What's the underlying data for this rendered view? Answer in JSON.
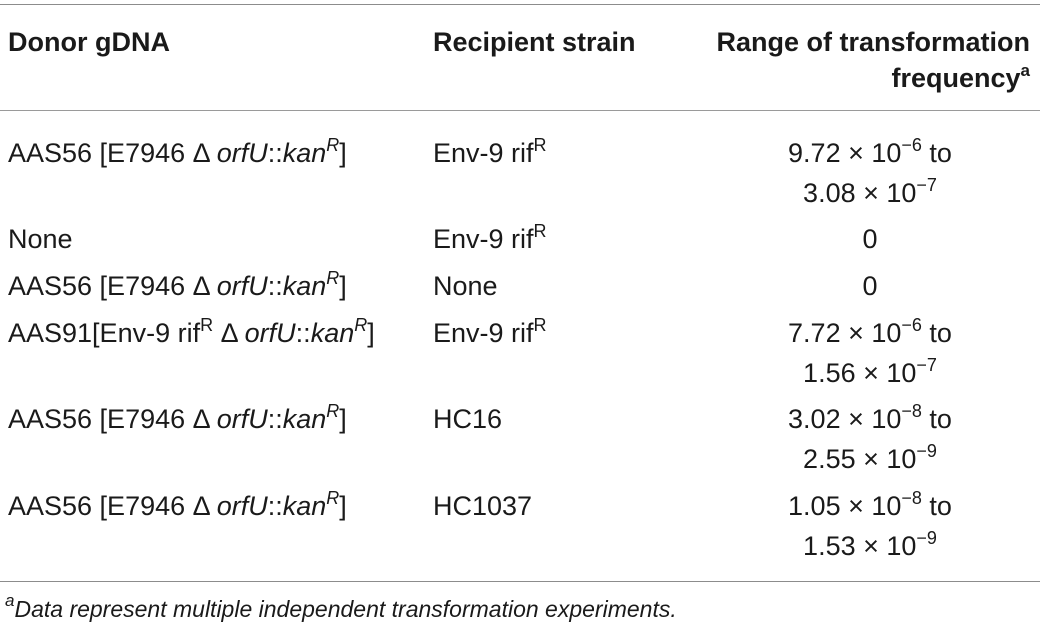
{
  "table": {
    "headers": {
      "donor": "Donor gDNA",
      "recipient": "Recipient strain",
      "frequency_line1": "Range of transformation",
      "frequency_line2": "frequency",
      "frequency_note_marker": "a"
    },
    "rows": [
      {
        "donor_prefix": "AAS56 [E7946 Δ ",
        "donor_gene": "orfU",
        "donor_sep": "::",
        "donor_marker": "kan",
        "donor_marker_sup": "R",
        "donor_suffix": "]",
        "recipient": "Env-9 rif",
        "recipient_sup": "R",
        "freq1_mantissa": "9.72 × 10",
        "freq1_exp": "−6",
        "freq1_tail": " to",
        "freq2_mantissa": "3.08 × 10",
        "freq2_exp": "−7"
      },
      {
        "donor_plain": "None",
        "recipient": "Env-9 rif",
        "recipient_sup": "R",
        "freq_single": "0"
      },
      {
        "donor_prefix": "AAS56 [E7946 Δ ",
        "donor_gene": "orfU",
        "donor_sep": "::",
        "donor_marker": "kan",
        "donor_marker_sup": "R",
        "donor_suffix": "]",
        "recipient": "None",
        "freq_single": "0"
      },
      {
        "donor_prefix": "AAS91[Env-9 rif",
        "donor_prefix_sup": "R",
        "donor_prefix2": " Δ ",
        "donor_gene": "orfU",
        "donor_sep": "::",
        "donor_marker": "kan",
        "donor_marker_sup": "R",
        "donor_suffix": "]",
        "recipient": "Env-9 rif",
        "recipient_sup": "R",
        "freq1_mantissa": "7.72 × 10",
        "freq1_exp": "−6",
        "freq1_tail": " to",
        "freq2_mantissa": "1.56 × 10",
        "freq2_exp": "−7"
      },
      {
        "donor_prefix": "AAS56 [E7946 Δ ",
        "donor_gene": "orfU",
        "donor_sep": "::",
        "donor_marker": "kan",
        "donor_marker_sup": "R",
        "donor_suffix": "]",
        "recipient": "HC16",
        "freq1_mantissa": "3.02 × 10",
        "freq1_exp": "−8",
        "freq1_tail": " to",
        "freq2_mantissa": "2.55 × 10",
        "freq2_exp": "−9"
      },
      {
        "donor_prefix": "AAS56 [E7946 Δ ",
        "donor_gene": "orfU",
        "donor_sep": "::",
        "donor_marker": "kan",
        "donor_marker_sup": "R",
        "donor_suffix": "]",
        "recipient": "HC1037",
        "freq1_mantissa": "1.05 × 10",
        "freq1_exp": "−8",
        "freq1_tail": " to",
        "freq2_mantissa": "1.53 × 10",
        "freq2_exp": "−9"
      }
    ],
    "footnote_marker": "a",
    "footnote": "Data represent multiple independent transformation experiments."
  }
}
